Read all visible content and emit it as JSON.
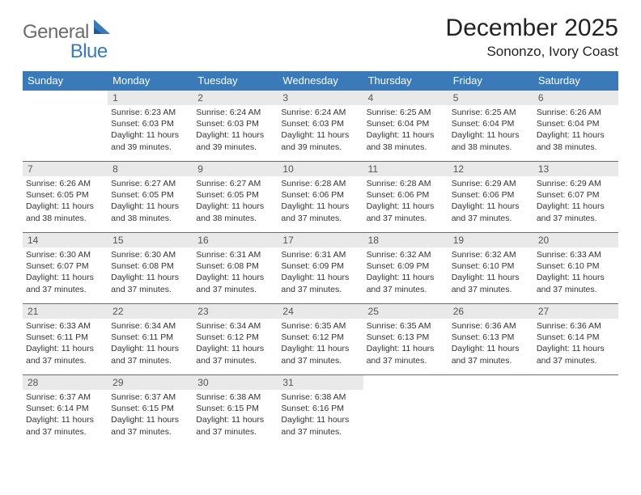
{
  "logo": {
    "text1": "General",
    "text2": "Blue"
  },
  "title": "December 2025",
  "location": "Sononzo, Ivory Coast",
  "colors": {
    "header_bg": "#3a7ab8",
    "header_text": "#ffffff",
    "daynum_bg": "#e9e9e9",
    "daynum_text": "#555555",
    "body_text": "#333333",
    "rule": "#3a7ab8"
  },
  "day_names": [
    "Sunday",
    "Monday",
    "Tuesday",
    "Wednesday",
    "Thursday",
    "Friday",
    "Saturday"
  ],
  "weeks": [
    [
      {
        "num": "",
        "lines": []
      },
      {
        "num": "1",
        "lines": [
          "Sunrise: 6:23 AM",
          "Sunset: 6:03 PM",
          "Daylight: 11 hours and 39 minutes."
        ]
      },
      {
        "num": "2",
        "lines": [
          "Sunrise: 6:24 AM",
          "Sunset: 6:03 PM",
          "Daylight: 11 hours and 39 minutes."
        ]
      },
      {
        "num": "3",
        "lines": [
          "Sunrise: 6:24 AM",
          "Sunset: 6:03 PM",
          "Daylight: 11 hours and 39 minutes."
        ]
      },
      {
        "num": "4",
        "lines": [
          "Sunrise: 6:25 AM",
          "Sunset: 6:04 PM",
          "Daylight: 11 hours and 38 minutes."
        ]
      },
      {
        "num": "5",
        "lines": [
          "Sunrise: 6:25 AM",
          "Sunset: 6:04 PM",
          "Daylight: 11 hours and 38 minutes."
        ]
      },
      {
        "num": "6",
        "lines": [
          "Sunrise: 6:26 AM",
          "Sunset: 6:04 PM",
          "Daylight: 11 hours and 38 minutes."
        ]
      }
    ],
    [
      {
        "num": "7",
        "lines": [
          "Sunrise: 6:26 AM",
          "Sunset: 6:05 PM",
          "Daylight: 11 hours and 38 minutes."
        ]
      },
      {
        "num": "8",
        "lines": [
          "Sunrise: 6:27 AM",
          "Sunset: 6:05 PM",
          "Daylight: 11 hours and 38 minutes."
        ]
      },
      {
        "num": "9",
        "lines": [
          "Sunrise: 6:27 AM",
          "Sunset: 6:05 PM",
          "Daylight: 11 hours and 38 minutes."
        ]
      },
      {
        "num": "10",
        "lines": [
          "Sunrise: 6:28 AM",
          "Sunset: 6:06 PM",
          "Daylight: 11 hours and 37 minutes."
        ]
      },
      {
        "num": "11",
        "lines": [
          "Sunrise: 6:28 AM",
          "Sunset: 6:06 PM",
          "Daylight: 11 hours and 37 minutes."
        ]
      },
      {
        "num": "12",
        "lines": [
          "Sunrise: 6:29 AM",
          "Sunset: 6:06 PM",
          "Daylight: 11 hours and 37 minutes."
        ]
      },
      {
        "num": "13",
        "lines": [
          "Sunrise: 6:29 AM",
          "Sunset: 6:07 PM",
          "Daylight: 11 hours and 37 minutes."
        ]
      }
    ],
    [
      {
        "num": "14",
        "lines": [
          "Sunrise: 6:30 AM",
          "Sunset: 6:07 PM",
          "Daylight: 11 hours and 37 minutes."
        ]
      },
      {
        "num": "15",
        "lines": [
          "Sunrise: 6:30 AM",
          "Sunset: 6:08 PM",
          "Daylight: 11 hours and 37 minutes."
        ]
      },
      {
        "num": "16",
        "lines": [
          "Sunrise: 6:31 AM",
          "Sunset: 6:08 PM",
          "Daylight: 11 hours and 37 minutes."
        ]
      },
      {
        "num": "17",
        "lines": [
          "Sunrise: 6:31 AM",
          "Sunset: 6:09 PM",
          "Daylight: 11 hours and 37 minutes."
        ]
      },
      {
        "num": "18",
        "lines": [
          "Sunrise: 6:32 AM",
          "Sunset: 6:09 PM",
          "Daylight: 11 hours and 37 minutes."
        ]
      },
      {
        "num": "19",
        "lines": [
          "Sunrise: 6:32 AM",
          "Sunset: 6:10 PM",
          "Daylight: 11 hours and 37 minutes."
        ]
      },
      {
        "num": "20",
        "lines": [
          "Sunrise: 6:33 AM",
          "Sunset: 6:10 PM",
          "Daylight: 11 hours and 37 minutes."
        ]
      }
    ],
    [
      {
        "num": "21",
        "lines": [
          "Sunrise: 6:33 AM",
          "Sunset: 6:11 PM",
          "Daylight: 11 hours and 37 minutes."
        ]
      },
      {
        "num": "22",
        "lines": [
          "Sunrise: 6:34 AM",
          "Sunset: 6:11 PM",
          "Daylight: 11 hours and 37 minutes."
        ]
      },
      {
        "num": "23",
        "lines": [
          "Sunrise: 6:34 AM",
          "Sunset: 6:12 PM",
          "Daylight: 11 hours and 37 minutes."
        ]
      },
      {
        "num": "24",
        "lines": [
          "Sunrise: 6:35 AM",
          "Sunset: 6:12 PM",
          "Daylight: 11 hours and 37 minutes."
        ]
      },
      {
        "num": "25",
        "lines": [
          "Sunrise: 6:35 AM",
          "Sunset: 6:13 PM",
          "Daylight: 11 hours and 37 minutes."
        ]
      },
      {
        "num": "26",
        "lines": [
          "Sunrise: 6:36 AM",
          "Sunset: 6:13 PM",
          "Daylight: 11 hours and 37 minutes."
        ]
      },
      {
        "num": "27",
        "lines": [
          "Sunrise: 6:36 AM",
          "Sunset: 6:14 PM",
          "Daylight: 11 hours and 37 minutes."
        ]
      }
    ],
    [
      {
        "num": "28",
        "lines": [
          "Sunrise: 6:37 AM",
          "Sunset: 6:14 PM",
          "Daylight: 11 hours and 37 minutes."
        ]
      },
      {
        "num": "29",
        "lines": [
          "Sunrise: 6:37 AM",
          "Sunset: 6:15 PM",
          "Daylight: 11 hours and 37 minutes."
        ]
      },
      {
        "num": "30",
        "lines": [
          "Sunrise: 6:38 AM",
          "Sunset: 6:15 PM",
          "Daylight: 11 hours and 37 minutes."
        ]
      },
      {
        "num": "31",
        "lines": [
          "Sunrise: 6:38 AM",
          "Sunset: 6:16 PM",
          "Daylight: 11 hours and 37 minutes."
        ]
      },
      {
        "num": "",
        "lines": []
      },
      {
        "num": "",
        "lines": []
      },
      {
        "num": "",
        "lines": []
      }
    ]
  ]
}
